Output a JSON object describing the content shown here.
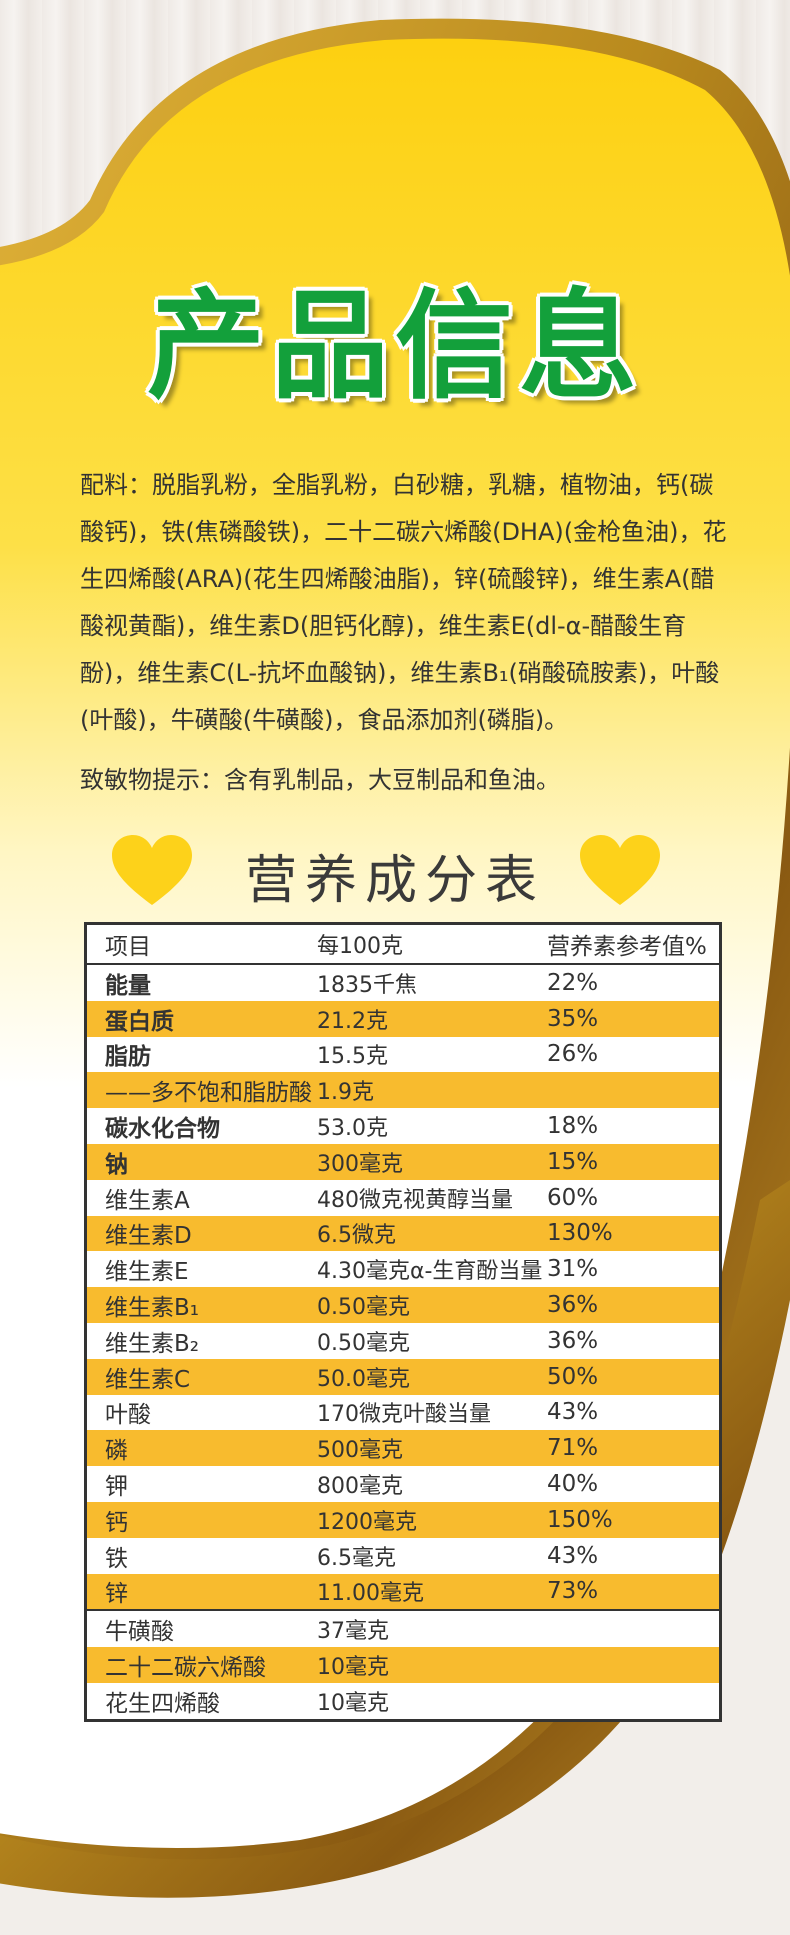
{
  "title": "产品信息",
  "ingredients": "配料：脱脂乳粉，全脂乳粉，白砂糖，乳糖，植物油，钙(碳酸钙)，铁(焦磷酸铁)，二十二碳六烯酸(DHA)(金枪鱼油)，花生四烯酸(ARA)(花生四烯酸油脂)，锌(硫酸锌)，维生素A(醋酸视黄酯)，维生素D(胆钙化醇)，维生素E(dl-α-醋酸生育酚)，维生素C(L-抗坏血酸钠)，维生素B₁(硝酸硫胺素)，叶酸(叶酸)，牛磺酸(牛磺酸)，食品添加剂(磷脂)。",
  "allergen": "致敏物提示：含有乳制品，大豆制品和鱼油。",
  "table_heading": "营养成分表",
  "colors": {
    "title_green": "#13a03b",
    "row_highlight": "#f8bb2e",
    "yellow": "#fdd21a",
    "gold": "#b98a1e"
  },
  "table": {
    "headers": [
      "项目",
      "每100克",
      "营养素参考值%"
    ],
    "rows": [
      {
        "item": "能量",
        "amount": "1835千焦",
        "nrv": "22%",
        "bold": true
      },
      {
        "item": "蛋白质",
        "amount": "21.2克",
        "nrv": "35%",
        "bold": true
      },
      {
        "item": "脂肪",
        "amount": "15.5克",
        "nrv": "26%",
        "bold": true
      },
      {
        "item": "——多不饱和脂肪酸",
        "amount": "1.9克",
        "nrv": ""
      },
      {
        "item": "碳水化合物",
        "amount": "53.0克",
        "nrv": "18%",
        "bold": true
      },
      {
        "item": "钠",
        "amount": "300毫克",
        "nrv": "15%",
        "bold": true
      },
      {
        "item": "维生素A",
        "amount": "480微克视黄醇当量",
        "nrv": "60%"
      },
      {
        "item": "维生素D",
        "amount": "6.5微克",
        "nrv": "130%"
      },
      {
        "item": "维生素E",
        "amount": "4.30毫克α-生育酚当量",
        "nrv": "31%"
      },
      {
        "item": "维生素B₁",
        "amount": "0.50毫克",
        "nrv": "36%"
      },
      {
        "item": "维生素B₂",
        "amount": "0.50毫克",
        "nrv": "36%"
      },
      {
        "item": "维生素C",
        "amount": "50.0毫克",
        "nrv": "50%"
      },
      {
        "item": "叶酸",
        "amount": "170微克叶酸当量",
        "nrv": "43%"
      },
      {
        "item": "磷",
        "amount": "500毫克",
        "nrv": "71%"
      },
      {
        "item": "钾",
        "amount": "800毫克",
        "nrv": "40%"
      },
      {
        "item": "钙",
        "amount": "1200毫克",
        "nrv": "150%"
      },
      {
        "item": "铁",
        "amount": "6.5毫克",
        "nrv": "43%"
      },
      {
        "item": "锌",
        "amount": "11.00毫克",
        "nrv": "73%"
      }
    ],
    "extra_rows": [
      {
        "item": "牛磺酸",
        "amount": "37毫克",
        "nrv": ""
      },
      {
        "item": "二十二碳六烯酸",
        "amount": "10毫克",
        "nrv": ""
      },
      {
        "item": "花生四烯酸",
        "amount": "10毫克",
        "nrv": ""
      }
    ]
  }
}
